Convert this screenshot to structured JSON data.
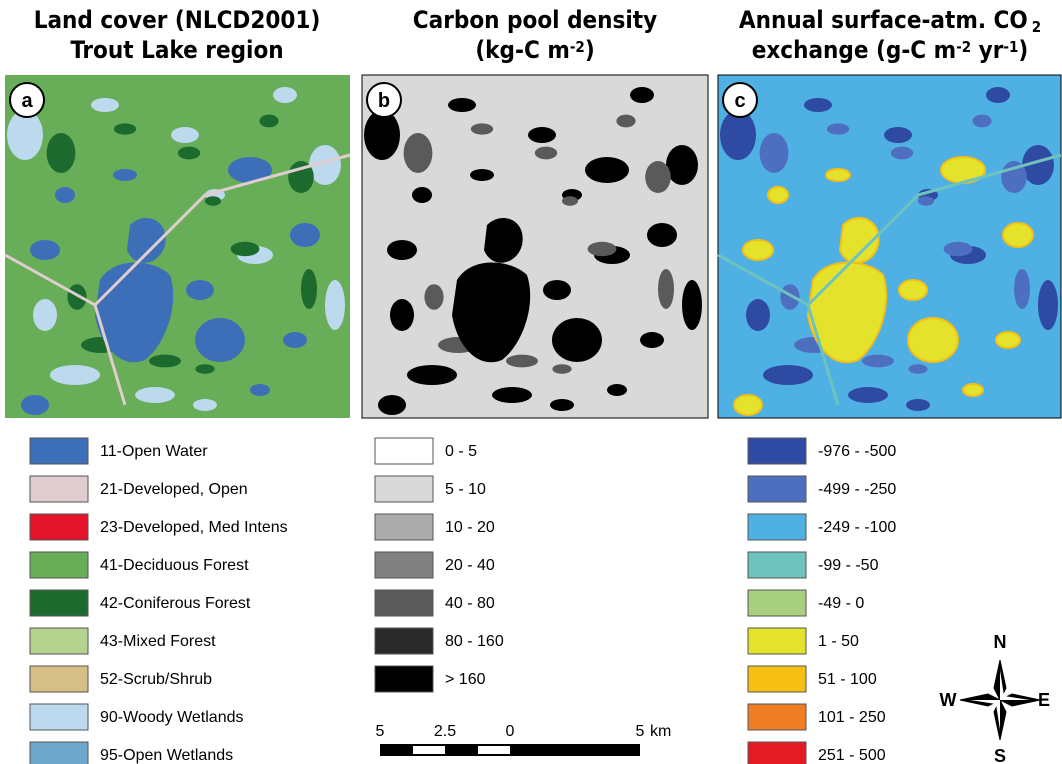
{
  "panels": [
    {
      "label": "a",
      "title": [
        [
          {
            "text": "Land cover (NLCD2001)"
          }
        ],
        [
          {
            "text": "Trout Lake region"
          }
        ]
      ],
      "legend": [
        {
          "label": "11-Open Water",
          "color": "#3d6fb8"
        },
        {
          "label": "21-Developed, Open",
          "color": "#e0cdd0"
        },
        {
          "label": "23-Developed, Med Intens",
          "color": "#e3132b"
        },
        {
          "label": "41-Deciduous Forest",
          "color": "#68ad57"
        },
        {
          "label": "42-Coniferous Forest",
          "color": "#1c6a2d"
        },
        {
          "label": "43-Mixed Forest",
          "color": "#b4d38e"
        },
        {
          "label": "52-Scrub/Shrub",
          "color": "#d6bf86"
        },
        {
          "label": "90-Woody Wetlands",
          "color": "#bdd9ee"
        },
        {
          "label": "95-Open Wetlands",
          "color": "#6ea6cc"
        }
      ]
    },
    {
      "label": "b",
      "title": [
        [
          {
            "text": "Carbon pool density"
          }
        ],
        [
          {
            "text": "(kg-C m"
          },
          {
            "text": "-2",
            "style": "sup"
          },
          {
            "text": ")"
          }
        ]
      ],
      "legend": [
        {
          "label": "0 - 5",
          "color": "#ffffff"
        },
        {
          "label": "5 - 10",
          "color": "#d9d9d9"
        },
        {
          "label": "10 - 20",
          "color": "#ababab"
        },
        {
          "label": "20 - 40",
          "color": "#808080"
        },
        {
          "label": "40 - 80",
          "color": "#5a5a5a"
        },
        {
          "label": "80 - 160",
          "color": "#2a2a2a"
        },
        {
          "label": "> 160",
          "color": "#000000"
        }
      ]
    },
    {
      "label": "c",
      "title": [
        [
          {
            "text": "Annual surface-atm. CO"
          },
          {
            "text": "2",
            "style": "sub"
          }
        ],
        [
          {
            "text": "exchange (g-C m"
          },
          {
            "text": "-2",
            "style": "sup"
          },
          {
            "text": " yr"
          },
          {
            "text": "-1",
            "style": "sup"
          },
          {
            "text": ")"
          }
        ]
      ],
      "legend": [
        {
          "label": "-976 - -500",
          "color": "#2f4aa2"
        },
        {
          "label": "-499 - -250",
          "color": "#4e6fbf"
        },
        {
          "label": "-249 - -100",
          "color": "#4fb0e3"
        },
        {
          "label": "-99 - -50",
          "color": "#6fc3bf"
        },
        {
          "label": "-49 - 0",
          "color": "#a8d080"
        },
        {
          "label": "1 - 50",
          "color": "#e4e22a"
        },
        {
          "label": "51 - 100",
          "color": "#f6bf14"
        },
        {
          "label": "101 - 250",
          "color": "#ee7d23"
        },
        {
          "label": "251 - 500",
          "color": "#e21b25"
        }
      ]
    }
  ],
  "scale_bar": {
    "ticks": [
      "5",
      "2.5",
      "0",
      "5"
    ],
    "unit": "km"
  },
  "compass": {
    "n": "N",
    "e": "E",
    "s": "S",
    "w": "W"
  }
}
